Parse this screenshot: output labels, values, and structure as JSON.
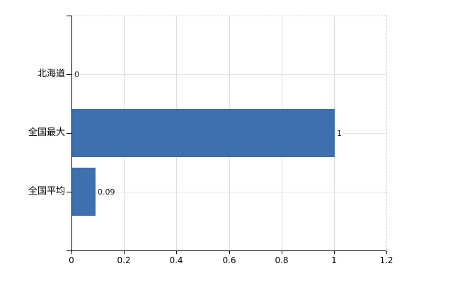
{
  "chart_data": {
    "type": "bar",
    "orientation": "horizontal",
    "title": "",
    "categories": [
      "北海道",
      "全国最大",
      "全国平均"
    ],
    "values": [
      0,
      1,
      0.09
    ],
    "value_labels": [
      "0",
      "1",
      "0.09"
    ],
    "xlabel": "",
    "ylabel": "",
    "xlim": [
      0,
      1.2
    ],
    "x_ticks": [
      {
        "value": 0,
        "label": "0"
      },
      {
        "value": 0.2,
        "label": "0.2"
      },
      {
        "value": 0.4,
        "label": "0.4"
      },
      {
        "value": 0.6,
        "label": "0.6"
      },
      {
        "value": 0.8,
        "label": "0.8"
      },
      {
        "value": 1,
        "label": "1"
      },
      {
        "value": 1.2,
        "label": "1.2"
      }
    ],
    "grid": "on",
    "legend": "none",
    "colors": {
      "bar": "#3e6fae",
      "gridline": "#d9ded9",
      "axis": "#000000",
      "text": "#000000",
      "background": "#ffffff"
    }
  }
}
